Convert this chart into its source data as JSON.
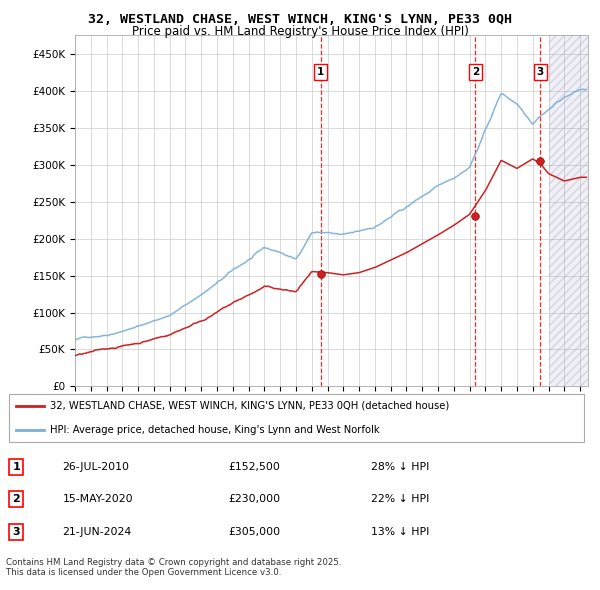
{
  "title_line1": "32, WESTLAND CHASE, WEST WINCH, KING'S LYNN, PE33 0QH",
  "title_line2": "Price paid vs. HM Land Registry's House Price Index (HPI)",
  "ylim": [
    0,
    475000
  ],
  "yticks": [
    0,
    50000,
    100000,
    150000,
    200000,
    250000,
    300000,
    350000,
    400000,
    450000
  ],
  "xlim_start": 1995.0,
  "xlim_end": 2027.5,
  "sale_dates": [
    2010.5726,
    2020.3699,
    2024.4699
  ],
  "sale_prices": [
    152500,
    230000,
    305000
  ],
  "legend_red": "32, WESTLAND CHASE, WEST WINCH, KING'S LYNN, PE33 0QH (detached house)",
  "legend_blue": "HPI: Average price, detached house, King's Lynn and West Norfolk",
  "transactions": [
    {
      "num": "1",
      "date": "26-JUL-2010",
      "price": "£152,500",
      "note": "28% ↓ HPI"
    },
    {
      "num": "2",
      "date": "15-MAY-2020",
      "price": "£230,000",
      "note": "22% ↓ HPI"
    },
    {
      "num": "3",
      "date": "21-JUN-2024",
      "price": "£305,000",
      "note": "13% ↓ HPI"
    }
  ],
  "footer": "Contains HM Land Registry data © Crown copyright and database right 2025.\nThis data is licensed under the Open Government Licence v3.0.",
  "grid_color": "#cccccc",
  "hpi_color": "#7aaed6",
  "pp_color": "#cc2222",
  "hatch_start": 2025.0
}
